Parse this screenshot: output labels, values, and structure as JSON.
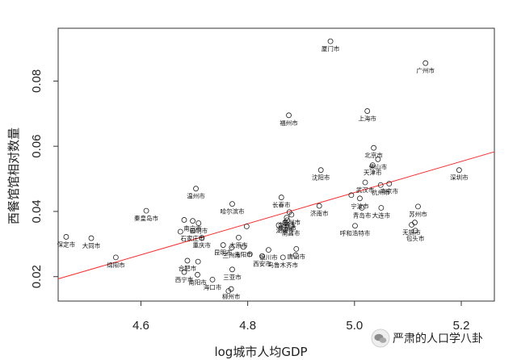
{
  "chart_data": {
    "type": "scatter",
    "title": "",
    "xlabel": "log城市人均GDP",
    "ylabel": "西餐馆馆相对数量",
    "xlim": [
      4.445,
      5.262
    ],
    "ylim": [
      0.0125,
      0.0962
    ],
    "xticks": [
      4.6,
      4.8,
      5.0,
      5.2
    ],
    "xtick_labels": [
      "4.6",
      "4.8",
      "5.0",
      "5.2"
    ],
    "yticks": [
      0.02,
      0.04,
      0.06,
      0.08
    ],
    "ytick_labels": [
      "0.02",
      "0.04",
      "0.06",
      "0.08"
    ],
    "grid": false,
    "fit_line": {
      "color": "#ff2a2a",
      "x": [
        4.445,
        5.262
      ],
      "y": [
        0.0193,
        0.0583
      ]
    },
    "points": [
      {
        "x": 4.955,
        "y": 0.0922,
        "label": "厦门市"
      },
      {
        "x": 5.133,
        "y": 0.0855,
        "label": "广州市"
      },
      {
        "x": 4.877,
        "y": 0.0695,
        "label": "福州市"
      },
      {
        "x": 5.024,
        "y": 0.0708,
        "label": "上海市"
      },
      {
        "x": 5.036,
        "y": 0.0595,
        "label": "北京市"
      },
      {
        "x": 5.044,
        "y": 0.056,
        "label": "佛山市"
      },
      {
        "x": 5.034,
        "y": 0.0542,
        "label": "天津市"
      },
      {
        "x": 4.937,
        "y": 0.0527,
        "label": "沈阳市"
      },
      {
        "x": 5.196,
        "y": 0.0527,
        "label": "深圳市"
      },
      {
        "x": 5.02,
        "y": 0.0489,
        "label": "武汉市"
      },
      {
        "x": 5.065,
        "y": 0.0485,
        "label": "南京市"
      },
      {
        "x": 5.049,
        "y": 0.0481,
        "label": "杭州市"
      },
      {
        "x": 4.703,
        "y": 0.047,
        "label": "温州市"
      },
      {
        "x": 4.994,
        "y": 0.045,
        "label": ""
      },
      {
        "x": 5.01,
        "y": 0.044,
        "label": "宁波市"
      },
      {
        "x": 4.771,
        "y": 0.0423,
        "label": "哈尔滨市"
      },
      {
        "x": 4.863,
        "y": 0.0443,
        "label": "长春市"
      },
      {
        "x": 4.934,
        "y": 0.0417,
        "label": "济南市"
      },
      {
        "x": 5.014,
        "y": 0.0411,
        "label": "青岛市"
      },
      {
        "x": 5.05,
        "y": 0.0411,
        "label": "大连市"
      },
      {
        "x": 5.119,
        "y": 0.0415,
        "label": "苏州市"
      },
      {
        "x": 4.61,
        "y": 0.0402,
        "label": "秦皇岛市"
      },
      {
        "x": 4.878,
        "y": 0.0398,
        "label": ""
      },
      {
        "x": 4.882,
        "y": 0.039,
        "label": "郑州市"
      },
      {
        "x": 4.873,
        "y": 0.0381,
        "label": "合肥市"
      },
      {
        "x": 4.681,
        "y": 0.0374,
        "label": ""
      },
      {
        "x": 4.697,
        "y": 0.0371,
        "label": "南宁市"
      },
      {
        "x": 4.708,
        "y": 0.0364,
        "label": "昆明市"
      },
      {
        "x": 4.874,
        "y": 0.0373,
        "label": "成都市"
      },
      {
        "x": 4.87,
        "y": 0.0365,
        "label": "湖南市"
      },
      {
        "x": 4.881,
        "y": 0.0356,
        "label": "南昌市"
      },
      {
        "x": 4.798,
        "y": 0.0354,
        "label": ""
      },
      {
        "x": 4.858,
        "y": 0.0358,
        "label": ""
      },
      {
        "x": 5.001,
        "y": 0.0356,
        "label": "呼和浩特市"
      },
      {
        "x": 5.107,
        "y": 0.0359,
        "label": "无锡市"
      },
      {
        "x": 5.113,
        "y": 0.0366,
        "label": ""
      },
      {
        "x": 5.114,
        "y": 0.0341,
        "label": "包头市"
      },
      {
        "x": 4.697,
        "y": 0.0341,
        "label": "石家庄市"
      },
      {
        "x": 4.674,
        "y": 0.0338,
        "label": ""
      },
      {
        "x": 4.783,
        "y": 0.032,
        "label": "太原市"
      },
      {
        "x": 4.714,
        "y": 0.0319,
        "label": "重庆市"
      },
      {
        "x": 4.46,
        "y": 0.0322,
        "label": "保定市"
      },
      {
        "x": 4.507,
        "y": 0.0318,
        "label": "大同市"
      },
      {
        "x": 4.754,
        "y": 0.0297,
        "label": "昆明市"
      },
      {
        "x": 4.792,
        "y": 0.0291,
        "label": "贵阳市"
      },
      {
        "x": 4.839,
        "y": 0.0282,
        "label": "银川市"
      },
      {
        "x": 4.891,
        "y": 0.0285,
        "label": "唐山市"
      },
      {
        "x": 4.827,
        "y": 0.0263,
        "label": "西安市"
      },
      {
        "x": 4.866,
        "y": 0.0259,
        "label": "乌鲁木齐市"
      },
      {
        "x": 4.89,
        "y": 0.0266,
        "label": ""
      },
      {
        "x": 4.804,
        "y": 0.0269,
        "label": ""
      },
      {
        "x": 4.77,
        "y": 0.0289,
        "label": "兰州市"
      },
      {
        "x": 4.553,
        "y": 0.0259,
        "label": "绵阳市"
      },
      {
        "x": 4.687,
        "y": 0.0249,
        "label": "合肥市"
      },
      {
        "x": 4.707,
        "y": 0.0246,
        "label": ""
      },
      {
        "x": 4.681,
        "y": 0.0214,
        "label": "西宁市"
      },
      {
        "x": 4.706,
        "y": 0.0206,
        "label": "南阳市"
      },
      {
        "x": 4.771,
        "y": 0.0222,
        "label": "三亚市"
      },
      {
        "x": 4.734,
        "y": 0.0191,
        "label": "海口市"
      },
      {
        "x": 4.769,
        "y": 0.0162,
        "label": "柳州市"
      },
      {
        "x": 4.764,
        "y": 0.0156,
        "label": ""
      }
    ]
  },
  "watermark": {
    "text": "严肃的人口学八卦",
    "icon": "wechat-icon"
  }
}
